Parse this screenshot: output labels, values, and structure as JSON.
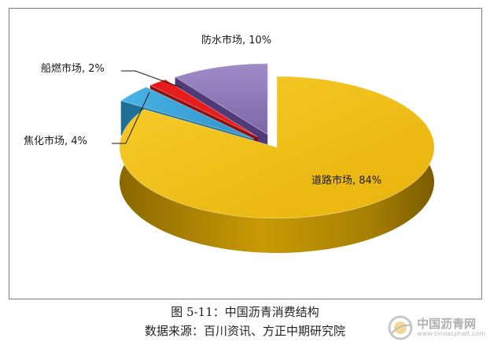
{
  "chart_data": {
    "type": "pie",
    "style": "3d-exploded",
    "categories": [
      "道路市场",
      "焦化市场",
      "船燃市场",
      "防水市场"
    ],
    "values": [
      84,
      4,
      2,
      10
    ],
    "labels": [
      "道路市场, 84%",
      "焦化市场, 4%",
      "船燃市场, 2%",
      "防水市场, 10%"
    ],
    "colors": {
      "道路市场": "#f0bb0e",
      "焦化市场": "#3ba7dc",
      "船燃市场": "#e81c1c",
      "防水市场": "#8a73b4"
    },
    "legend": "none"
  },
  "caption": {
    "line1": "图 5-11：中国沥青消费结构",
    "line2": "数据来源：百川资讯、方正中期研究院"
  },
  "watermark": {
    "text": "中国沥青网",
    "url": "www.sinoasphalt.com"
  }
}
